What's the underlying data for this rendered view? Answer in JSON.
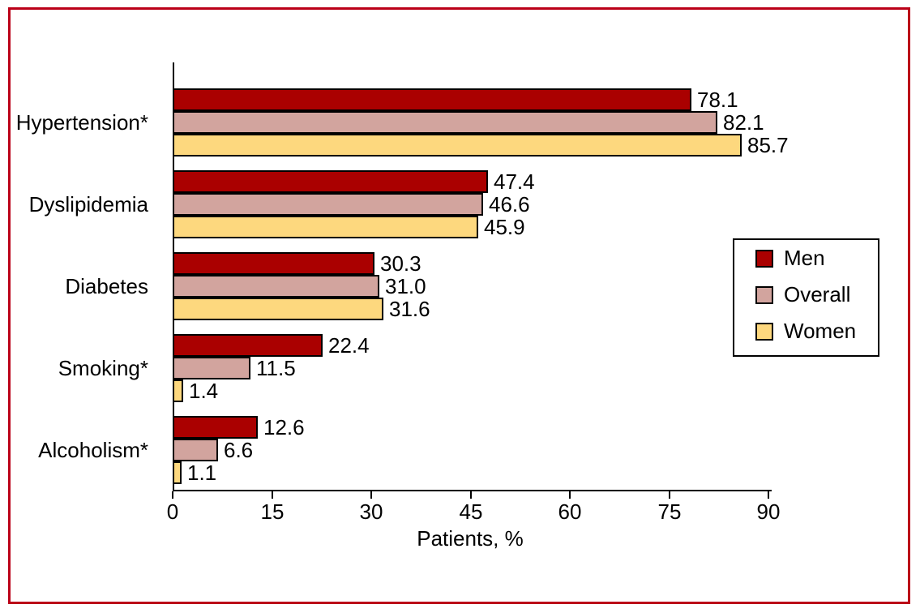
{
  "figure": {
    "border_color": "#BB0018",
    "background_color": "#FFFFFF"
  },
  "chart_data": {
    "type": "bar",
    "orientation": "horizontal",
    "title": "",
    "xlabel": "Patients, %",
    "xlim": [
      0,
      90
    ],
    "xticks": [
      0,
      15,
      30,
      45,
      60,
      75,
      90
    ],
    "grid": false,
    "bar_outline_color": "#000000",
    "legend_position": "middle-right",
    "categories": [
      "Hypertension*",
      "Dyslipidemia",
      "Diabetes",
      "Smoking*",
      "Alcoholism*"
    ],
    "series": [
      {
        "name": "Men",
        "color": "#AA0000",
        "values": [
          78.1,
          47.4,
          30.3,
          22.4,
          12.6
        ],
        "value_labels": [
          "78.1",
          "47.4",
          "30.3",
          "22.4",
          "12.6"
        ]
      },
      {
        "name": "Overall",
        "color": "#D2A49E",
        "values": [
          82.1,
          46.6,
          31.0,
          11.5,
          6.6
        ],
        "value_labels": [
          "82.1",
          "46.6",
          "31.0",
          "11.5",
          "6.6"
        ]
      },
      {
        "name": "Women",
        "color": "#FDD87E",
        "values": [
          85.7,
          45.9,
          31.6,
          1.4,
          1.1
        ],
        "value_labels": [
          "85.7",
          "45.9",
          "31.6",
          "1.4",
          "1.1"
        ]
      }
    ]
  }
}
